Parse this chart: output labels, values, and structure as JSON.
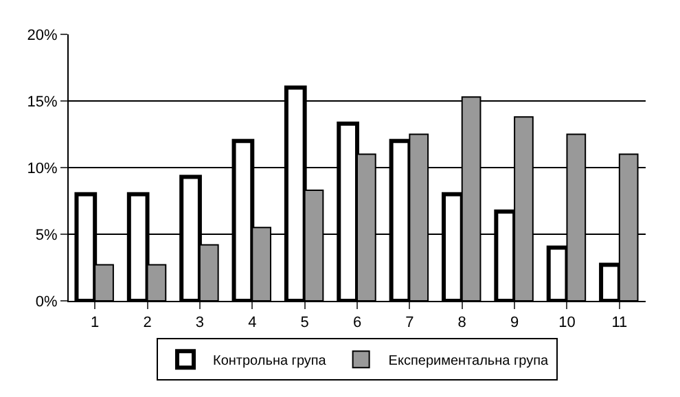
{
  "chart_data": {
    "type": "bar",
    "categories": [
      "1",
      "2",
      "3",
      "4",
      "5",
      "6",
      "7",
      "8",
      "9",
      "10",
      "11"
    ],
    "series": [
      {
        "name": "Контрольна група",
        "color": "#ffffff",
        "values": [
          8,
          8,
          9.3,
          12,
          16,
          13.3,
          12,
          8,
          6.7,
          4,
          2.7
        ]
      },
      {
        "name": "Експериментальна група",
        "color": "#999999",
        "values": [
          2.7,
          2.7,
          4.2,
          5.5,
          8.3,
          11,
          12.5,
          15.3,
          13.8,
          12.5,
          11
        ]
      }
    ],
    "ylim": [
      0,
      20
    ],
    "yticks": [
      {
        "value": 0,
        "label": "0%"
      },
      {
        "value": 5,
        "label": "5%"
      },
      {
        "value": 10,
        "label": "10%"
      },
      {
        "value": 15,
        "label": "15%"
      },
      {
        "value": 20,
        "label": "20%"
      }
    ],
    "grid": "y",
    "legend": "bottom"
  }
}
